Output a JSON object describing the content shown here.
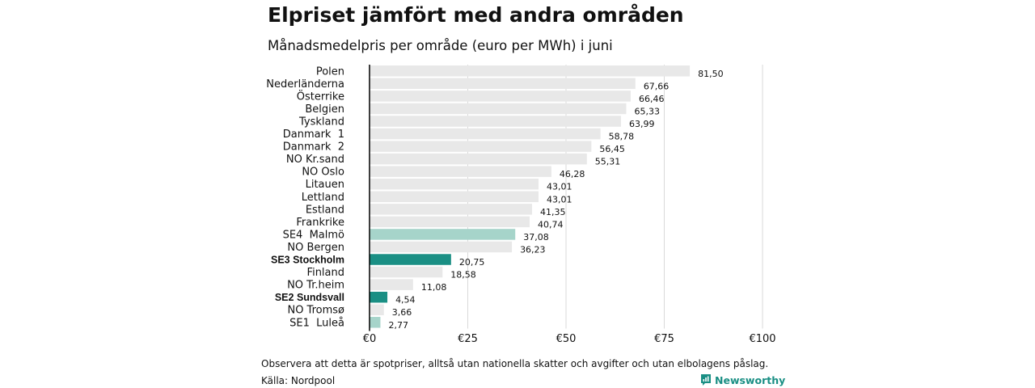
{
  "title": "Elpriset jämfört med andra områden",
  "subtitle": "Månadsmedelpris per område (euro per MWh) i juni",
  "footnote": "Observera att detta är spotpriser, alltså utan nationella skatter och avgifter och utan elbolagens påslag.",
  "source": "Källa: Nordpool",
  "brand": {
    "name": "Newsworthy",
    "icon": "newsworthy-logo-icon"
  },
  "colors": {
    "default_bar": "#e8e8e8",
    "highlight_dark": "#1a8f84",
    "highlight_light": "#a6d4ca",
    "grid": "#d9d9d9",
    "axis": "#000000",
    "brand": "#1a8f84"
  },
  "chart_data": {
    "type": "bar",
    "orientation": "horizontal",
    "categories": [
      "Polen",
      "Nederländerna",
      "Österrike",
      "Belgien",
      "Tyskland",
      "Danmark  1",
      "Danmark  2",
      "NO Kr.sand",
      "NO Oslo",
      "Litauen",
      "Lettland",
      "Estland",
      "Frankrike",
      "SE4  Malmö",
      "NO Bergen",
      "SE3 Stockholm",
      "Finland",
      "NO Tr.heim",
      "SE2 Sundsvall",
      "NO Tromsø",
      "SE1  Luleå"
    ],
    "values": [
      81.5,
      67.66,
      66.46,
      65.33,
      63.99,
      58.78,
      56.45,
      55.31,
      46.28,
      43.01,
      43.01,
      41.35,
      40.74,
      37.08,
      36.23,
      20.75,
      18.58,
      11.08,
      4.54,
      3.66,
      2.77
    ],
    "value_labels": [
      "81,50",
      "67,66",
      "66,46",
      "65,33",
      "63,99",
      "58,78",
      "56,45",
      "55,31",
      "46,28",
      "43,01",
      "43,01",
      "41,35",
      "40,74",
      "37,08",
      "36,23",
      "20,75",
      "18,58",
      "11,08",
      "4,54",
      "3,66",
      "2,77"
    ],
    "highlight": [
      "none",
      "none",
      "none",
      "none",
      "none",
      "none",
      "none",
      "none",
      "none",
      "none",
      "none",
      "none",
      "none",
      "light",
      "none",
      "dark",
      "none",
      "none",
      "dark",
      "none",
      "light"
    ],
    "bold_labels": [
      "SE3 Stockholm",
      "SE2 Sundsvall"
    ],
    "xlim": [
      0,
      100
    ],
    "x_ticks": [
      0,
      25,
      50,
      75,
      100
    ],
    "x_tick_labels": [
      "€0",
      "€25",
      "€50",
      "€75",
      "€100"
    ],
    "grid": true,
    "xlabel": "",
    "ylabel": ""
  }
}
